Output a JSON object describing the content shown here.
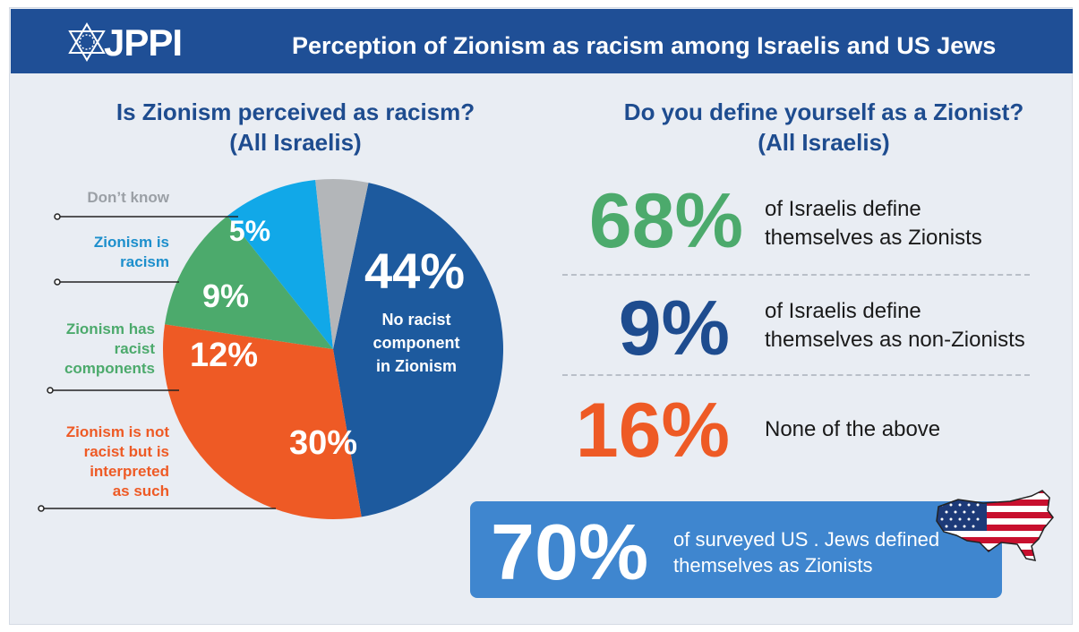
{
  "header": {
    "logo_text": "JPPI",
    "title": "Perception of Zionism as racism among Israelis and US Jews"
  },
  "left_panel": {
    "title_line1": "Is Zionism perceived as racism?",
    "title_line2": "(All Israelis)"
  },
  "right_panel": {
    "title_line1": "Do you define yourself as a Zionist?",
    "title_line2": "(All Israelis)",
    "stats": [
      {
        "value": "68%",
        "line1": "of Israelis define",
        "line2": "themselves as Zionists",
        "color": "#4caa6c"
      },
      {
        "value": "9%",
        "line1": "of Israelis define",
        "line2": "themselves as non-Zionists",
        "color": "#1e4c8f"
      },
      {
        "value": "16%",
        "line1": "None of the above",
        "line2": "",
        "color": "#ee5a25"
      }
    ]
  },
  "us_callout": {
    "value": "70%",
    "line1": "of surveyed US . Jews defined",
    "line2": "themselves as Zionists",
    "flag_icon": "us-map-flag-icon"
  },
  "chart_data": {
    "type": "pie",
    "title": "Is Zionism perceived as racism? (All Israelis)",
    "slices": [
      {
        "label": "No racist component in Zionism",
        "value": 44,
        "pct_label": "44%",
        "color": "#1d5a9e"
      },
      {
        "label": "Zionism is not racist but is interpreted as such",
        "value": 30,
        "pct_label": "30%",
        "color": "#ee5a25"
      },
      {
        "label": "Zionism has racist components",
        "value": 12,
        "pct_label": "12%",
        "color": "#4caa6c"
      },
      {
        "label": "Zionism is racism",
        "value": 9,
        "pct_label": "9%",
        "color": "#11a8e8"
      },
      {
        "label": "Don't know",
        "value": 5,
        "pct_label": "5%",
        "color": "#b3b6b9"
      }
    ]
  },
  "pie_labels": {
    "dont_know": "Don’t know",
    "racism_line1": "Zionism is",
    "racism_line2": "racism",
    "racist_comp_line1": "Zionism has",
    "racist_comp_line2": "racist",
    "racist_comp_line3": "components",
    "not_racist_line1": "Zionism is not",
    "not_racist_line2": "racist but is",
    "not_racist_line3": "interpreted",
    "not_racist_line4": "as such",
    "big_desc_line1": "No racist",
    "big_desc_line2": "component",
    "big_desc_line3": "in Zionism"
  }
}
